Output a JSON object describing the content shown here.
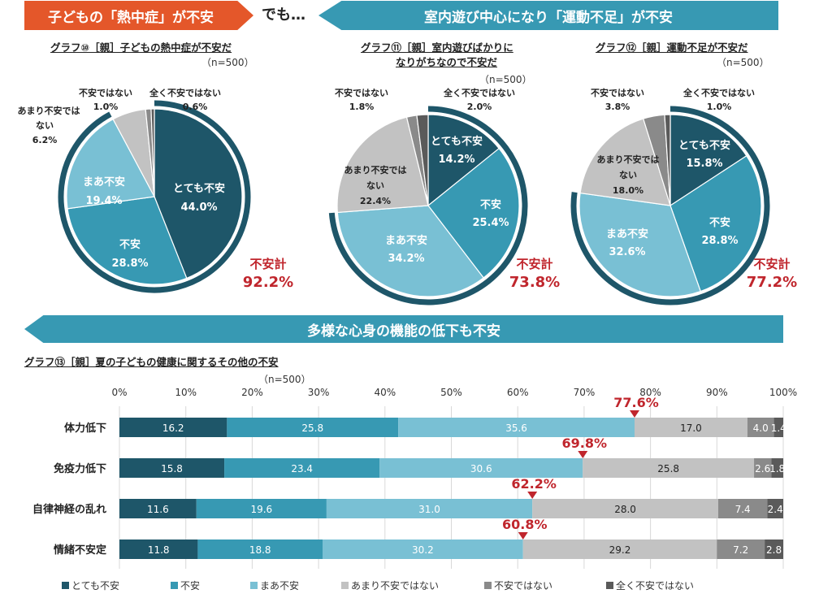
{
  "banners": {
    "heatstroke": "子どもの「熱中症」が不安",
    "but": "でも…",
    "exercise": "室内遊び中心になり「運動不足」が不安",
    "diverse": "多様な心身の機能の低下も不安"
  },
  "colors": {
    "very_anxious": "#1e5669",
    "anxious": "#3799b3",
    "somewhat_anxious": "#79c0d4",
    "not_very": "#c2c2c2",
    "not_anxious": "#8a8a8a",
    "not_at_all": "#5a5a5a",
    "total_red": "#c0262d",
    "heat_orange": "#e4572a"
  },
  "chart_data": [
    {
      "type": "pie",
      "id": "graph10",
      "title": "グラフ⑩［親］子どもの熱中症が不安だ",
      "n_label": "（n=500）",
      "labels": [
        "とても不安",
        "不安",
        "まあ不安",
        "あまり不安ではない",
        "不安ではない",
        "全く不安ではない"
      ],
      "values": [
        44.0,
        28.8,
        19.4,
        6.2,
        1.0,
        0.6
      ],
      "total_label": "不安計",
      "total_value": "92.2%"
    },
    {
      "type": "pie",
      "id": "graph11",
      "title_line1": "グラフ⑪［親］室内遊びばかりに",
      "title_line2": "なりがちなので不安だ",
      "n_label": "（n=500）",
      "labels": [
        "とても不安",
        "不安",
        "まあ不安",
        "あまり不安ではない",
        "不安ではない",
        "全く不安ではない"
      ],
      "values": [
        14.2,
        25.4,
        34.2,
        22.4,
        1.8,
        2.0
      ],
      "total_label": "不安計",
      "total_value": "73.8%"
    },
    {
      "type": "pie",
      "id": "graph12",
      "title": "グラフ⑫［親］運動不足が不安だ",
      "n_label": "（n=500）",
      "labels": [
        "とても不安",
        "不安",
        "まあ不安",
        "あまり不安ではない",
        "不安ではない",
        "全く不安ではない"
      ],
      "values": [
        15.8,
        28.8,
        32.6,
        18.0,
        3.8,
        1.0
      ],
      "total_label": "不安計",
      "total_value": "77.2%"
    },
    {
      "type": "bar",
      "id": "graph13",
      "orientation": "horizontal-stacked",
      "title": "グラフ⑬［親］夏の子どもの健康に関するその他の不安",
      "n_label": "（n=500）",
      "xlim": [
        0,
        100
      ],
      "xticks": [
        "0%",
        "10%",
        "20%",
        "30%",
        "40%",
        "50%",
        "60%",
        "70%",
        "80%",
        "90%",
        "100%"
      ],
      "grid": true,
      "categories": [
        "体力低下",
        "免疫力低下",
        "自律神経の乱れ",
        "情緒不安定"
      ],
      "series": [
        {
          "name": "とても不安",
          "values": [
            16.2,
            15.8,
            11.6,
            11.8
          ]
        },
        {
          "name": "不安",
          "values": [
            25.8,
            23.4,
            19.6,
            18.8
          ]
        },
        {
          "name": "まあ不安",
          "values": [
            35.6,
            30.6,
            31.0,
            30.2
          ]
        },
        {
          "name": "あまり不安ではない",
          "values": [
            17.0,
            25.8,
            28.0,
            29.2
          ]
        },
        {
          "name": "不安ではない",
          "values": [
            4.0,
            2.6,
            7.4,
            7.2
          ]
        },
        {
          "name": "全く不安ではない",
          "values": [
            1.4,
            1.8,
            2.4,
            2.8
          ]
        }
      ],
      "value_labels": [
        [
          "16.2",
          "25.8",
          "35.6",
          "17.0",
          "4.0",
          "1.4"
        ],
        [
          "15.8",
          "23.4",
          "30.6",
          "25.8",
          "2.6",
          "1.8"
        ],
        [
          "11.6",
          "19.6",
          "31.0",
          "28.0",
          "7.4",
          "2.4"
        ],
        [
          "11.8",
          "18.8",
          "30.2",
          "29.2",
          "7.2",
          "2.8"
        ]
      ],
      "totals": [
        "77.6%",
        "69.8%",
        "62.2%",
        "60.8%"
      ],
      "legend": [
        "とても不安",
        "不安",
        "まあ不安",
        "あまり不安ではない",
        "不安ではない",
        "全く不安ではない"
      ],
      "legend_position": "bottom"
    }
  ]
}
